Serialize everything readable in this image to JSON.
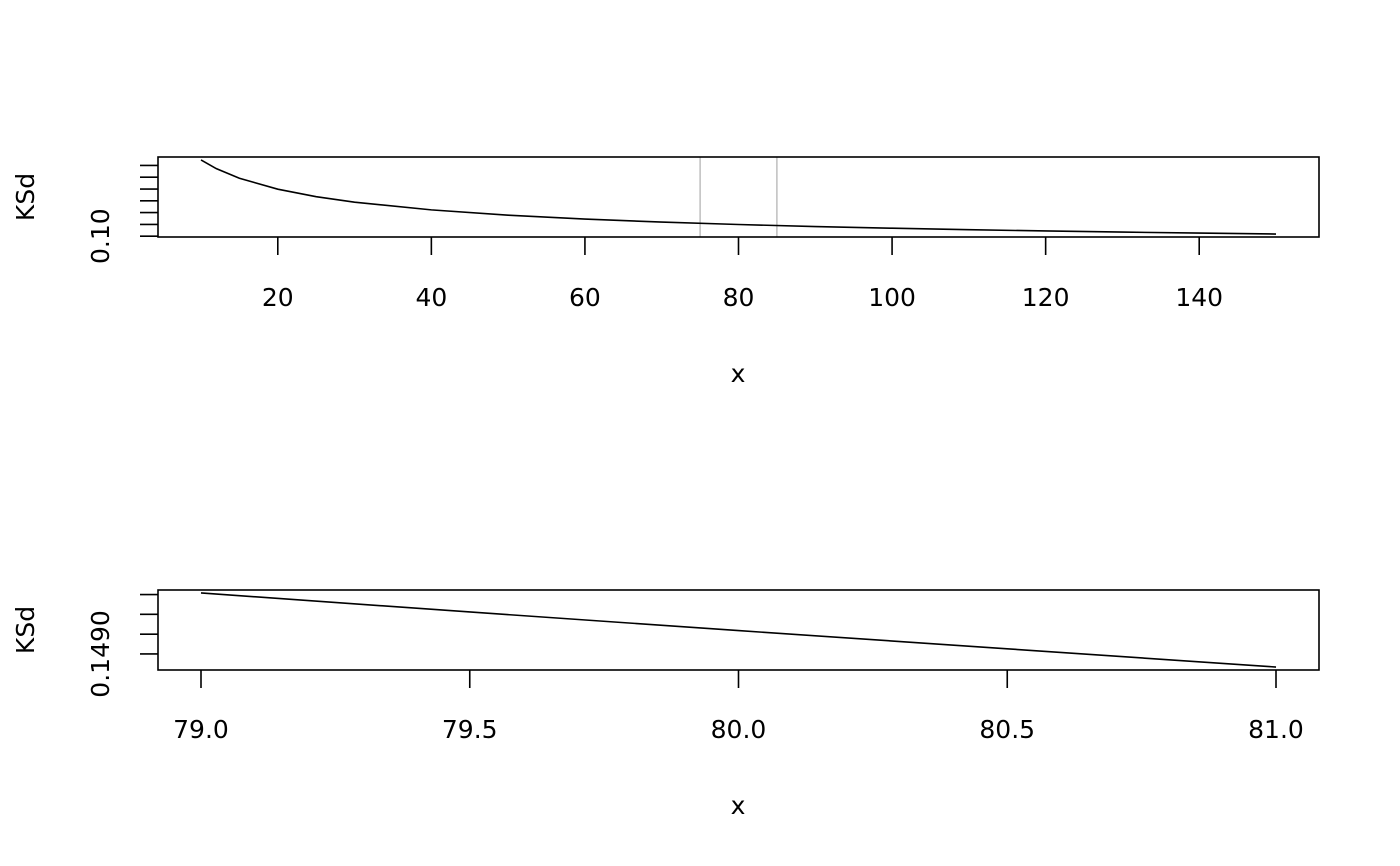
{
  "chart_data": [
    {
      "type": "line",
      "xlabel": "x",
      "ylabel": "KSd",
      "xlim": [
        4.4,
        155.6
      ],
      "ylim": [
        0.0966,
        0.4357
      ],
      "x_ticks": [
        20,
        40,
        60,
        80,
        100,
        120,
        140
      ],
      "x_tick_labels": [
        "20",
        "40",
        "60",
        "80",
        "100",
        "120",
        "140"
      ],
      "y_ticks": [
        0.1,
        0.15,
        0.2,
        0.25,
        0.3,
        0.35,
        0.4
      ],
      "y_tick_labels_shown": [
        {
          "value": 0.1,
          "label": "0.10"
        }
      ],
      "grid": false,
      "vlines": {
        "x": [
          75,
          85
        ],
        "color": "#bebebe"
      },
      "series": [
        {
          "color": "#000000",
          "x": [
            10,
            12,
            15,
            20,
            25,
            30,
            40,
            50,
            60,
            70,
            80,
            90,
            100,
            110,
            120,
            130,
            140,
            150
          ],
          "y": [
            0.4231,
            0.3863,
            0.3455,
            0.2992,
            0.2676,
            0.2443,
            0.2116,
            0.1892,
            0.1727,
            0.1599,
            0.1496,
            0.141,
            0.1338,
            0.1276,
            0.1221,
            0.1174,
            0.1131,
            0.1092
          ]
        }
      ]
    },
    {
      "type": "line",
      "xlabel": "x",
      "ylabel": "KSd",
      "xlim": [
        78.92,
        81.08
      ],
      "ylim": [
        0.148595,
        0.150615
      ],
      "x_ticks": [
        79.0,
        79.5,
        80.0,
        80.5,
        81.0
      ],
      "x_tick_labels": [
        "79.0",
        "79.5",
        "80.0",
        "80.5",
        "81.0"
      ],
      "y_ticks": [
        0.149,
        0.1495,
        0.15,
        0.1505
      ],
      "y_tick_labels_shown": [
        {
          "value": 0.149,
          "label": "0.1490"
        }
      ],
      "grid": false,
      "series": [
        {
          "color": "#000000",
          "x": [
            79.0,
            79.5,
            80.0,
            80.5,
            81.0
          ],
          "y": [
            0.15054,
            0.15006,
            0.14959,
            0.14913,
            0.14867
          ]
        }
      ]
    }
  ]
}
